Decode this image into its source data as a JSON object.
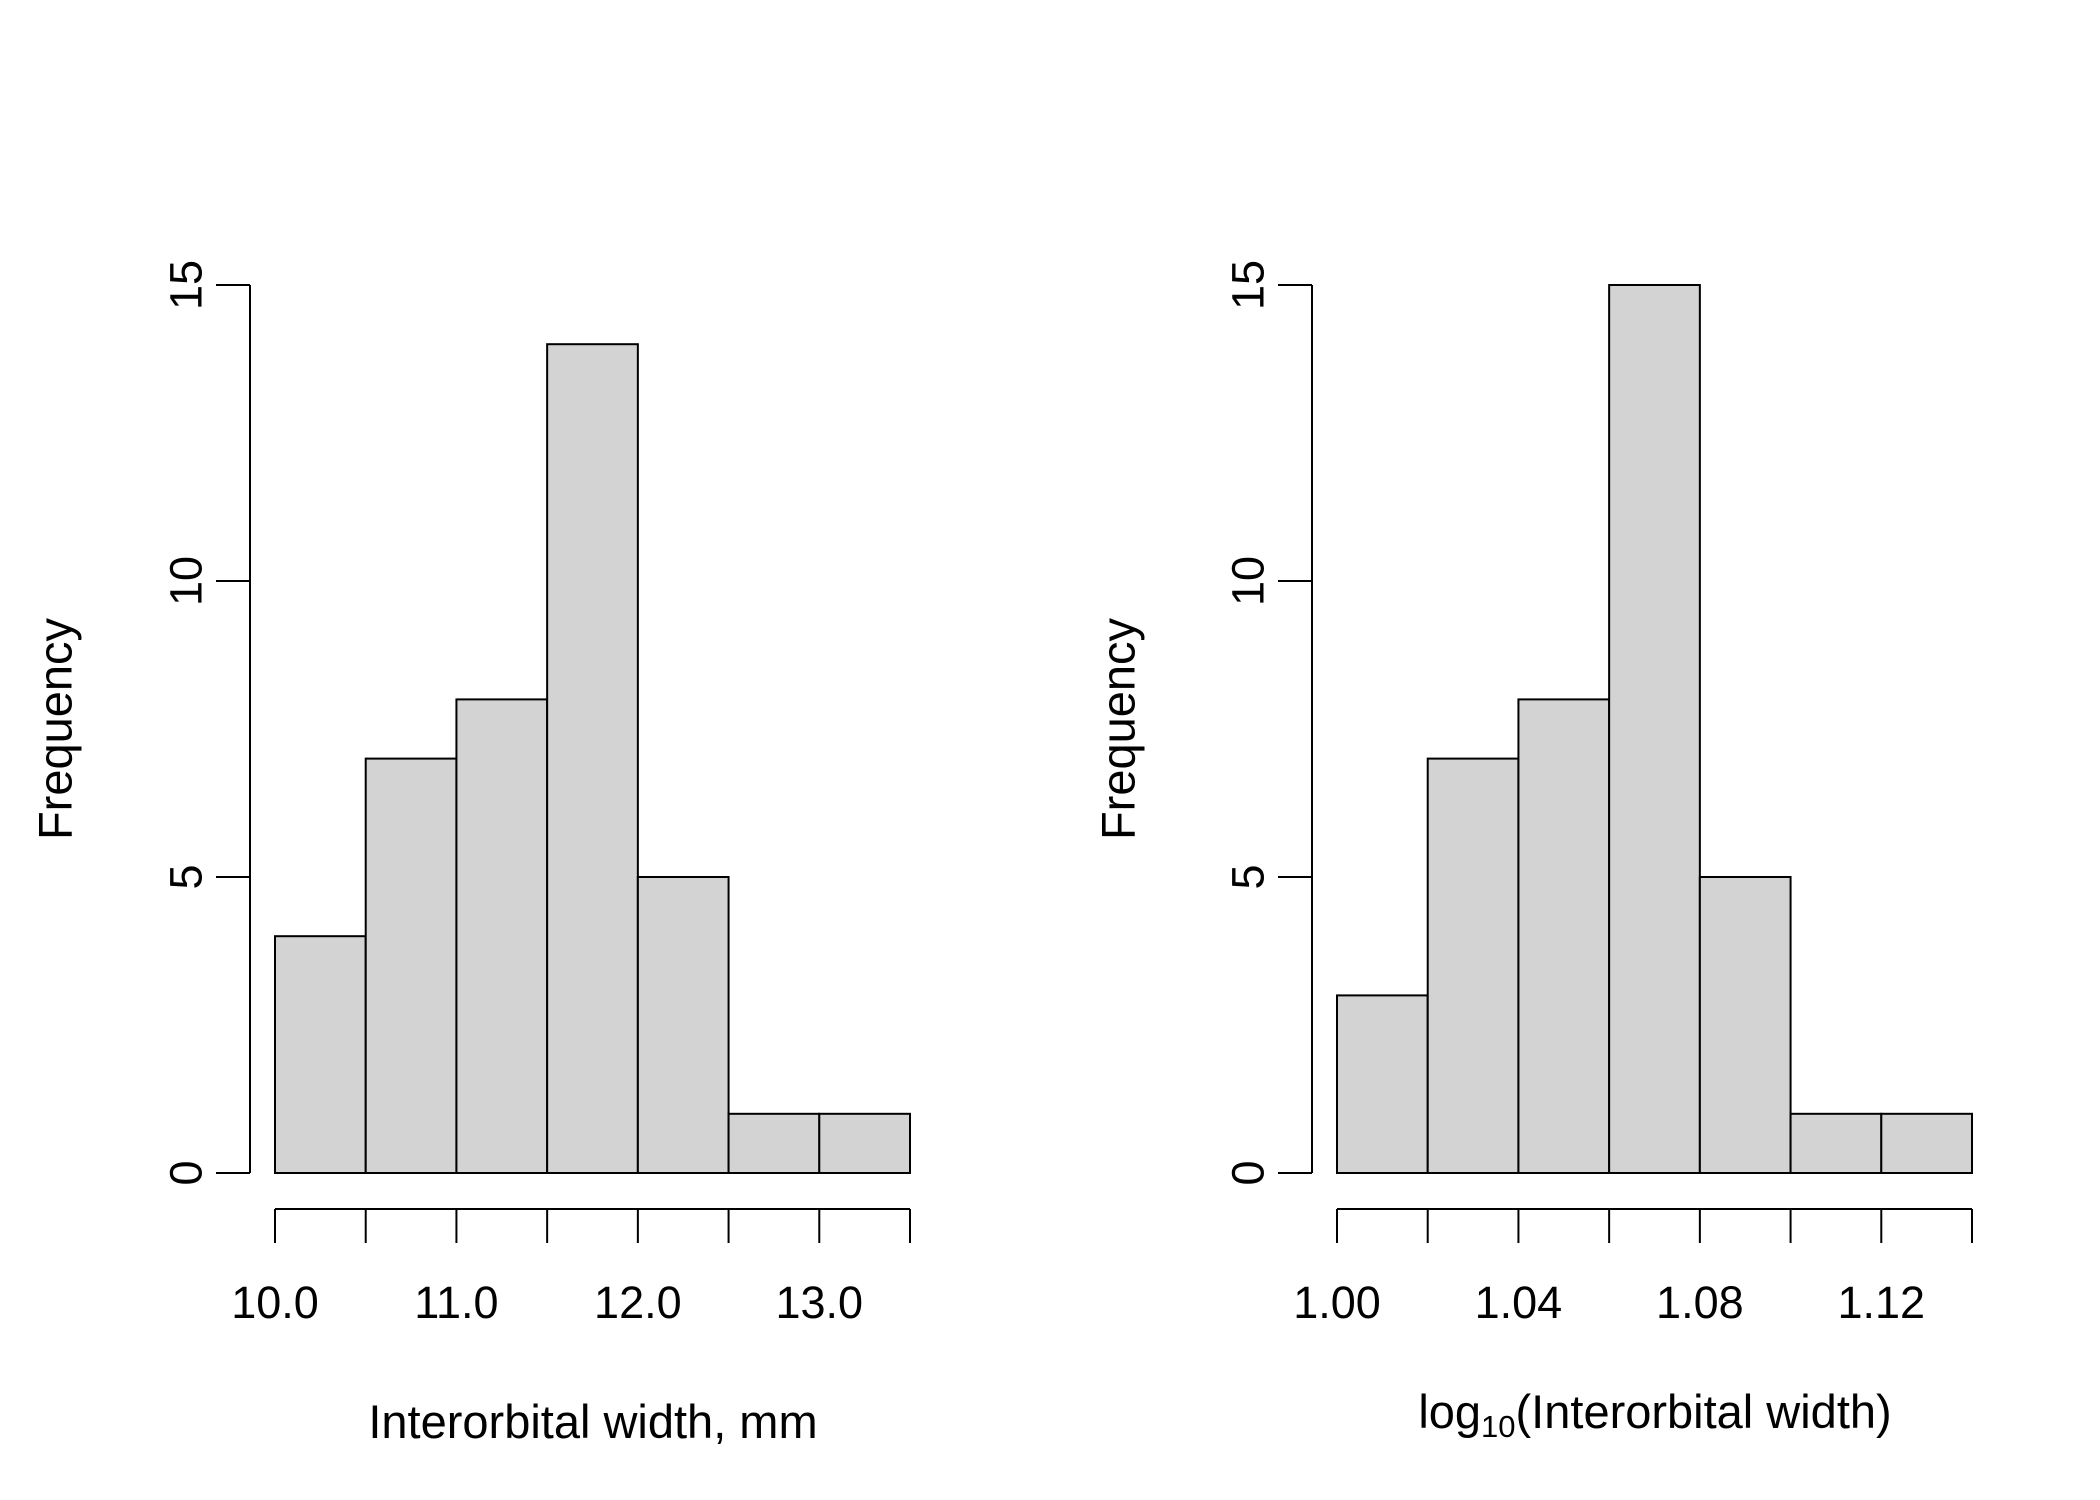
{
  "colors": {
    "bar_fill": "#d3d3d3",
    "bar_stroke": "#000000",
    "background": "#ffffff"
  },
  "chart_data": [
    {
      "type": "bar",
      "subtype": "histogram",
      "xlabel": "Interorbital width, mm",
      "ylabel": "Frequency",
      "bin_edges": [
        10.0,
        10.5,
        11.0,
        11.5,
        12.0,
        12.5,
        13.0,
        13.5
      ],
      "values": [
        4,
        7,
        8,
        14,
        5,
        1,
        1
      ],
      "xlim": [
        10.0,
        13.5
      ],
      "ylim": [
        0,
        15
      ],
      "x_ticks": [
        10.0,
        10.5,
        11.0,
        11.5,
        12.0,
        12.5,
        13.0,
        13.5
      ],
      "x_tick_labels": [
        "10.0",
        "",
        "11.0",
        "",
        "12.0",
        "",
        "13.0",
        ""
      ],
      "y_ticks": [
        0,
        5,
        10,
        15
      ],
      "y_tick_labels": [
        "0",
        "5",
        "10",
        "15"
      ],
      "grid": false
    },
    {
      "type": "bar",
      "subtype": "histogram",
      "xlabel": "(Interorbital width)",
      "xlabel_prefix": "log",
      "xlabel_subscript": "10",
      "ylabel": "Frequency",
      "bin_edges": [
        1.0,
        1.02,
        1.04,
        1.06,
        1.08,
        1.1,
        1.12,
        1.14
      ],
      "values": [
        3,
        7,
        8,
        15,
        5,
        1,
        1
      ],
      "xlim": [
        1.0,
        1.14
      ],
      "ylim": [
        0,
        15
      ],
      "x_ticks": [
        1.0,
        1.02,
        1.04,
        1.06,
        1.08,
        1.1,
        1.12,
        1.14
      ],
      "x_tick_labels": [
        "1.00",
        "",
        "1.04",
        "",
        "1.08",
        "",
        "1.12",
        ""
      ],
      "y_ticks": [
        0,
        5,
        10,
        15
      ],
      "y_tick_labels": [
        "0",
        "5",
        "10",
        "15"
      ],
      "grid": false
    }
  ]
}
